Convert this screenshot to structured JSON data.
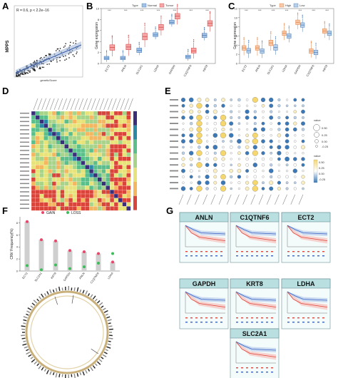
{
  "panels": {
    "a": {
      "letter": "A",
      "ylabel": "MPPS",
      "xlabel": "geneticScore",
      "stat": "R = 0.6, p < 2.2e−16"
    },
    "b": {
      "letter": "B",
      "ylabel": "Gene expression",
      "legend_title": "Type",
      "legend_items": [
        "Normal",
        "Tumor"
      ]
    },
    "c": {
      "letter": "C",
      "ylabel": "Gene expression",
      "legend_title": "Type",
      "legend_items": [
        "High",
        "Low"
      ]
    },
    "d": {
      "letter": "D"
    },
    "e": {
      "letter": "E",
      "legend_value_title": "value",
      "legend_value_ticks": [
        "0.50",
        "0.25",
        "0.00",
        "-0.25"
      ]
    },
    "f": {
      "letter": "F",
      "ylabel": "CNV Frequency(%)",
      "legend_gain": "GAIN",
      "legend_loss": "LOSS"
    },
    "g": {
      "letter": "G"
    }
  },
  "genes": [
    "ECT2",
    "ANLN",
    "SLC2A1",
    "LDHA",
    "GAPDH",
    "C1QTNF6",
    "KRT8"
  ],
  "chart_data": [
    {
      "id": "B",
      "type": "box",
      "categories": [
        "ECT2",
        "ANLN",
        "SLC2A1",
        "LDHA",
        "GAPDH",
        "C1QTNF6",
        "KRT8"
      ],
      "series": [
        {
          "name": "Normal",
          "median": [
            1.0,
            1.0,
            2.4,
            5.2,
            7.5,
            1.2,
            5.1
          ],
          "q1": [
            0.7,
            0.7,
            2.0,
            4.9,
            7.2,
            0.9,
            4.7
          ],
          "q3": [
            1.3,
            1.3,
            2.8,
            5.6,
            7.9,
            1.5,
            5.5
          ],
          "low": [
            0.3,
            0.3,
            1.5,
            4.4,
            6.7,
            0.5,
            4.2
          ],
          "high": [
            1.8,
            1.8,
            3.3,
            6.1,
            8.4,
            2.0,
            6.0
          ]
        },
        {
          "name": "Tumor",
          "median": [
            2.9,
            3.0,
            4.9,
            6.6,
            8.6,
            2.3,
            7.3
          ],
          "q1": [
            2.4,
            2.5,
            4.3,
            6.1,
            8.1,
            1.9,
            6.8
          ],
          "q3": [
            3.4,
            3.5,
            5.5,
            7.1,
            9.1,
            2.8,
            7.8
          ],
          "low": [
            1.3,
            1.4,
            3.0,
            5.1,
            7.1,
            0.9,
            5.8
          ],
          "high": [
            4.5,
            4.6,
            6.8,
            8.1,
            10.2,
            3.8,
            8.9
          ]
        }
      ],
      "sig": [
        "***",
        "***",
        "***",
        "***",
        "***",
        "***",
        "***"
      ],
      "ylim": [
        0,
        10
      ],
      "yticks": [
        0,
        2,
        4,
        6,
        8,
        10
      ]
    },
    {
      "id": "C",
      "type": "box",
      "categories": [
        "ECT2",
        "ANLN",
        "SLC2A1",
        "LDHA",
        "GAPDH",
        "C1QTNF6",
        "KRT8"
      ],
      "series": [
        {
          "name": "High",
          "median": [
            3.4,
            3.4,
            4.5,
            6.6,
            9.0,
            2.7,
            7.1
          ],
          "q1": [
            2.9,
            2.9,
            3.9,
            6.1,
            8.5,
            2.2,
            6.6
          ],
          "q3": [
            3.9,
            3.9,
            5.1,
            7.1,
            9.5,
            3.2,
            7.6
          ],
          "low": [
            1.8,
            1.7,
            2.8,
            5.1,
            7.5,
            1.3,
            5.6
          ],
          "high": [
            5.0,
            5.0,
            6.3,
            8.1,
            10.4,
            4.2,
            8.5
          ]
        },
        {
          "name": "Low",
          "median": [
            2.8,
            2.7,
            3.5,
            6.0,
            8.4,
            2.4,
            6.6
          ],
          "q1": [
            2.3,
            2.2,
            2.9,
            5.5,
            7.9,
            1.9,
            6.1
          ],
          "q3": [
            3.3,
            3.2,
            4.1,
            6.5,
            8.9,
            2.9,
            7.1
          ],
          "low": [
            1.2,
            1.2,
            1.9,
            4.6,
            6.9,
            1.0,
            5.1
          ],
          "high": [
            4.4,
            4.3,
            5.2,
            7.5,
            9.9,
            3.8,
            8.0
          ]
        }
      ],
      "sig": [
        "***",
        "***",
        "***",
        "***",
        "***",
        "***",
        "***"
      ],
      "ylim": [
        0,
        12
      ],
      "yticks": [
        0,
        2,
        4,
        6,
        8,
        10,
        12
      ]
    },
    {
      "id": "F",
      "type": "bar",
      "categories": [
        "ECT2",
        "SLC2A1",
        "KRT8",
        "GAPDH",
        "ANLN",
        "C1QTNF6",
        "LDHA"
      ],
      "gain": [
        8.2,
        5.2,
        5.0,
        3.4,
        3.2,
        2.9,
        1.5
      ],
      "loss": [
        0.9,
        0.2,
        1.0,
        0.4,
        0.7,
        1.3,
        2.9
      ],
      "ylim": [
        0,
        9
      ],
      "yticks": [
        0,
        2,
        4,
        6,
        8
      ]
    }
  ]
}
